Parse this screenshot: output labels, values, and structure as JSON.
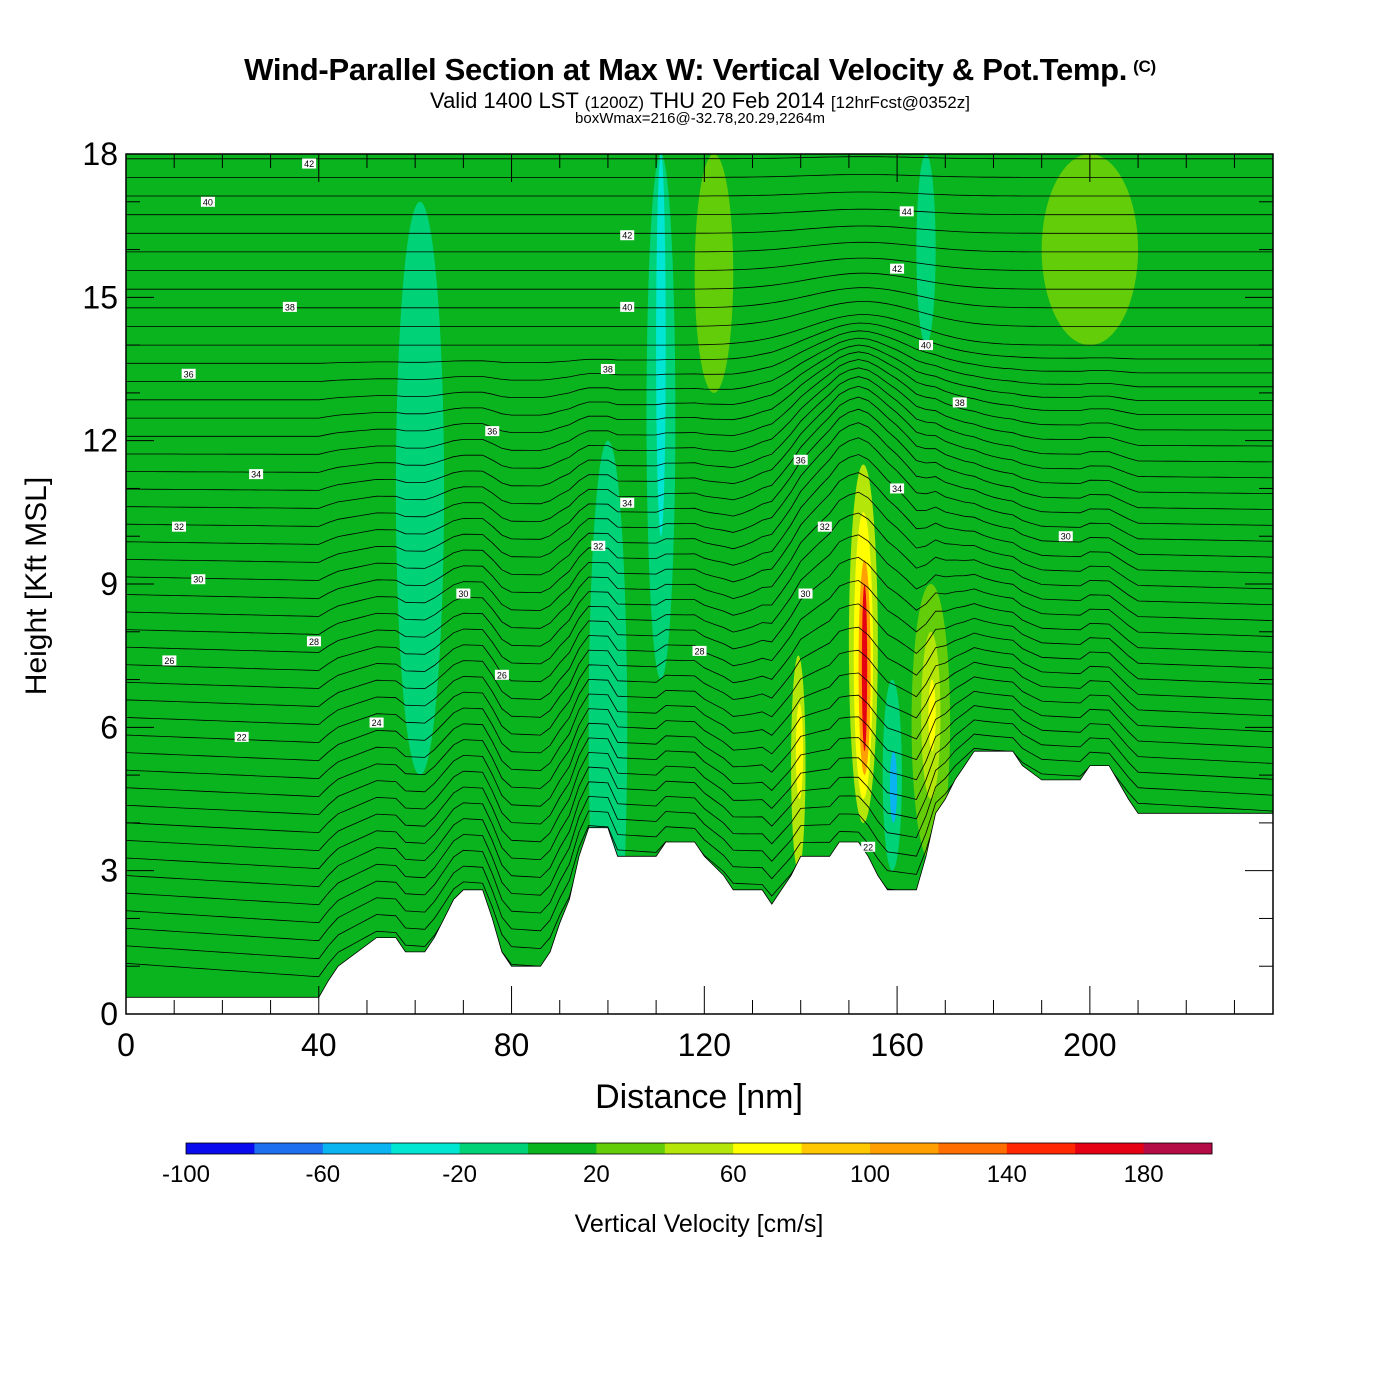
{
  "header": {
    "title": "Wind-Parallel Section at Max W: Vertical Velocity & Pot.Temp.",
    "copyright": "(C)",
    "subtitle_valid": "Valid 1400 LST",
    "subtitle_utc": "(1200Z)",
    "subtitle_date": "THU 20 Feb 2014",
    "subtitle_fcst": "[12hrFcst@0352z]",
    "box_info": "boxWmax=216@-32.78,20.29,2264m"
  },
  "chart_data": {
    "type": "heatmap",
    "title": "Wind-Parallel Section at Max W: Vertical Velocity & Pot.Temp.",
    "xlabel": "Distance [nm]",
    "ylabel": "Height [Kft MSL]",
    "xlim": [
      0,
      238
    ],
    "ylim": [
      0,
      18
    ],
    "x_ticks": [
      0,
      40,
      80,
      120,
      160,
      200
    ],
    "y_ticks": [
      0,
      3,
      6,
      9,
      12,
      15,
      18
    ],
    "colorbar": {
      "label": "Vertical Velocity [cm/s]",
      "tick_labels": [
        "-100",
        "-60",
        "-20",
        "20",
        "60",
        "100",
        "140",
        "180"
      ],
      "bounds": [
        -100,
        200
      ],
      "step": 20,
      "colors": [
        "#0a0aee",
        "#1e6ef0",
        "#0ab4f0",
        "#00e6d2",
        "#00d278",
        "#0ab41e",
        "#64cd0a",
        "#b4e60a",
        "#ffff00",
        "#ffc800",
        "#ffa000",
        "#ff6e00",
        "#ff2800",
        "#e60014",
        "#b40a46"
      ]
    },
    "terrain_kft": [
      [
        0,
        0.35
      ],
      [
        40,
        0.35
      ],
      [
        42,
        0.7
      ],
      [
        44,
        1.0
      ],
      [
        48,
        1.3
      ],
      [
        52,
        1.6
      ],
      [
        56,
        1.6
      ],
      [
        58,
        1.3
      ],
      [
        62,
        1.3
      ],
      [
        64,
        1.6
      ],
      [
        66,
        2.0
      ],
      [
        68,
        2.4
      ],
      [
        70,
        2.6
      ],
      [
        74,
        2.6
      ],
      [
        76,
        2.0
      ],
      [
        78,
        1.3
      ],
      [
        80,
        1.0
      ],
      [
        86,
        1.0
      ],
      [
        88,
        1.3
      ],
      [
        90,
        1.9
      ],
      [
        92,
        2.4
      ],
      [
        94,
        3.3
      ],
      [
        96,
        3.9
      ],
      [
        100,
        3.9
      ],
      [
        102,
        3.3
      ],
      [
        110,
        3.3
      ],
      [
        112,
        3.6
      ],
      [
        118,
        3.6
      ],
      [
        120,
        3.3
      ],
      [
        124,
        2.9
      ],
      [
        126,
        2.6
      ],
      [
        132,
        2.6
      ],
      [
        134,
        2.3
      ],
      [
        136,
        2.6
      ],
      [
        138,
        2.9
      ],
      [
        140,
        3.3
      ],
      [
        146,
        3.3
      ],
      [
        148,
        3.6
      ],
      [
        152,
        3.6
      ],
      [
        154,
        3.3
      ],
      [
        156,
        2.9
      ],
      [
        158,
        2.6
      ],
      [
        164,
        2.6
      ],
      [
        166,
        3.3
      ],
      [
        168,
        4.2
      ],
      [
        170,
        4.5
      ],
      [
        172,
        4.9
      ],
      [
        174,
        5.2
      ],
      [
        176,
        5.5
      ],
      [
        184,
        5.5
      ],
      [
        186,
        5.2
      ],
      [
        190,
        4.9
      ],
      [
        198,
        4.9
      ],
      [
        200,
        5.2
      ],
      [
        204,
        5.2
      ],
      [
        208,
        4.5
      ],
      [
        210,
        4.2
      ],
      [
        238,
        4.2
      ]
    ],
    "vertical_velocity_cells": [
      {
        "x": [
          0,
          238
        ],
        "y": [
          0,
          18
        ],
        "w": 10
      },
      {
        "x": [
          0,
          14
        ],
        "y": [
          0,
          10
        ],
        "w": 0
      },
      {
        "x": [
          24,
          40
        ],
        "y": [
          0,
          12
        ],
        "w": 0
      },
      {
        "x": [
          56,
          66
        ],
        "y": [
          5,
          17
        ],
        "w": -10
      },
      {
        "x": [
          96,
          104
        ],
        "y": [
          0,
          12
        ],
        "w": -10
      },
      {
        "x": [
          108,
          114
        ],
        "y": [
          7,
          18
        ],
        "w": -20
      },
      {
        "x": [
          110,
          112
        ],
        "y": [
          10,
          18
        ],
        "w": -40
      },
      {
        "x": [
          118,
          126
        ],
        "y": [
          13,
          18
        ],
        "w": 30
      },
      {
        "x": [
          138,
          141
        ],
        "y": [
          3,
          7.5
        ],
        "w": 40
      },
      {
        "x": [
          139,
          140.5
        ],
        "y": [
          4.5,
          6.5
        ],
        "w": 60
      },
      {
        "x": [
          150,
          156
        ],
        "y": [
          4,
          11.5
        ],
        "w": 40
      },
      {
        "x": [
          151,
          155
        ],
        "y": [
          4.5,
          10.5
        ],
        "w": 70
      },
      {
        "x": [
          152,
          154.5
        ],
        "y": [
          5,
          9.5
        ],
        "w": 110
      },
      {
        "x": [
          152.7,
          153.8
        ],
        "y": [
          5.5,
          9
        ],
        "w": 170
      },
      {
        "x": [
          157,
          161
        ],
        "y": [
          3,
          7
        ],
        "w": -20
      },
      {
        "x": [
          158.5,
          160
        ],
        "y": [
          4,
          5.5
        ],
        "w": -60
      },
      {
        "x": [
          163,
          171
        ],
        "y": [
          3.2,
          9
        ],
        "w": 30
      },
      {
        "x": [
          165,
          169
        ],
        "y": [
          4.5,
          8
        ],
        "w": 50
      },
      {
        "x": [
          166.5,
          168
        ],
        "y": [
          5.5,
          7
        ],
        "w": 70
      },
      {
        "x": [
          164,
          168
        ],
        "y": [
          14,
          18
        ],
        "w": -20
      },
      {
        "x": [
          190,
          210
        ],
        "y": [
          14,
          18
        ],
        "w": 30
      }
    ],
    "theta_contour_labels": [
      {
        "x": 38,
        "y": 17.8,
        "label": "42"
      },
      {
        "x": 17,
        "y": 17.0,
        "label": "40"
      },
      {
        "x": 104,
        "y": 16.3,
        "label": "42"
      },
      {
        "x": 162,
        "y": 16.8,
        "label": "44"
      },
      {
        "x": 160,
        "y": 15.6,
        "label": "42"
      },
      {
        "x": 34,
        "y": 14.8,
        "label": "38"
      },
      {
        "x": 104,
        "y": 14.8,
        "label": "40"
      },
      {
        "x": 166,
        "y": 14.0,
        "label": "40"
      },
      {
        "x": 13,
        "y": 13.4,
        "label": "36"
      },
      {
        "x": 100,
        "y": 13.5,
        "label": "38"
      },
      {
        "x": 173,
        "y": 12.8,
        "label": "38"
      },
      {
        "x": 76,
        "y": 12.2,
        "label": "36"
      },
      {
        "x": 140,
        "y": 11.6,
        "label": "36"
      },
      {
        "x": 27,
        "y": 11.3,
        "label": "34"
      },
      {
        "x": 160,
        "y": 11.0,
        "label": "34"
      },
      {
        "x": 104,
        "y": 10.7,
        "label": "34"
      },
      {
        "x": 11,
        "y": 10.2,
        "label": "32"
      },
      {
        "x": 145,
        "y": 10.2,
        "label": "32"
      },
      {
        "x": 195,
        "y": 10.0,
        "label": "30"
      },
      {
        "x": 98,
        "y": 9.8,
        "label": "32"
      },
      {
        "x": 15,
        "y": 9.1,
        "label": "30"
      },
      {
        "x": 70,
        "y": 8.8,
        "label": "30"
      },
      {
        "x": 141,
        "y": 8.8,
        "label": "30"
      },
      {
        "x": 39,
        "y": 7.8,
        "label": "28"
      },
      {
        "x": 119,
        "y": 7.6,
        "label": "28"
      },
      {
        "x": 9,
        "y": 7.4,
        "label": "26"
      },
      {
        "x": 78,
        "y": 7.1,
        "label": "26"
      },
      {
        "x": 52,
        "y": 6.1,
        "label": "24"
      },
      {
        "x": 24,
        "y": 5.8,
        "label": "22"
      },
      {
        "x": 154,
        "y": 3.5,
        "label": "22"
      }
    ]
  }
}
